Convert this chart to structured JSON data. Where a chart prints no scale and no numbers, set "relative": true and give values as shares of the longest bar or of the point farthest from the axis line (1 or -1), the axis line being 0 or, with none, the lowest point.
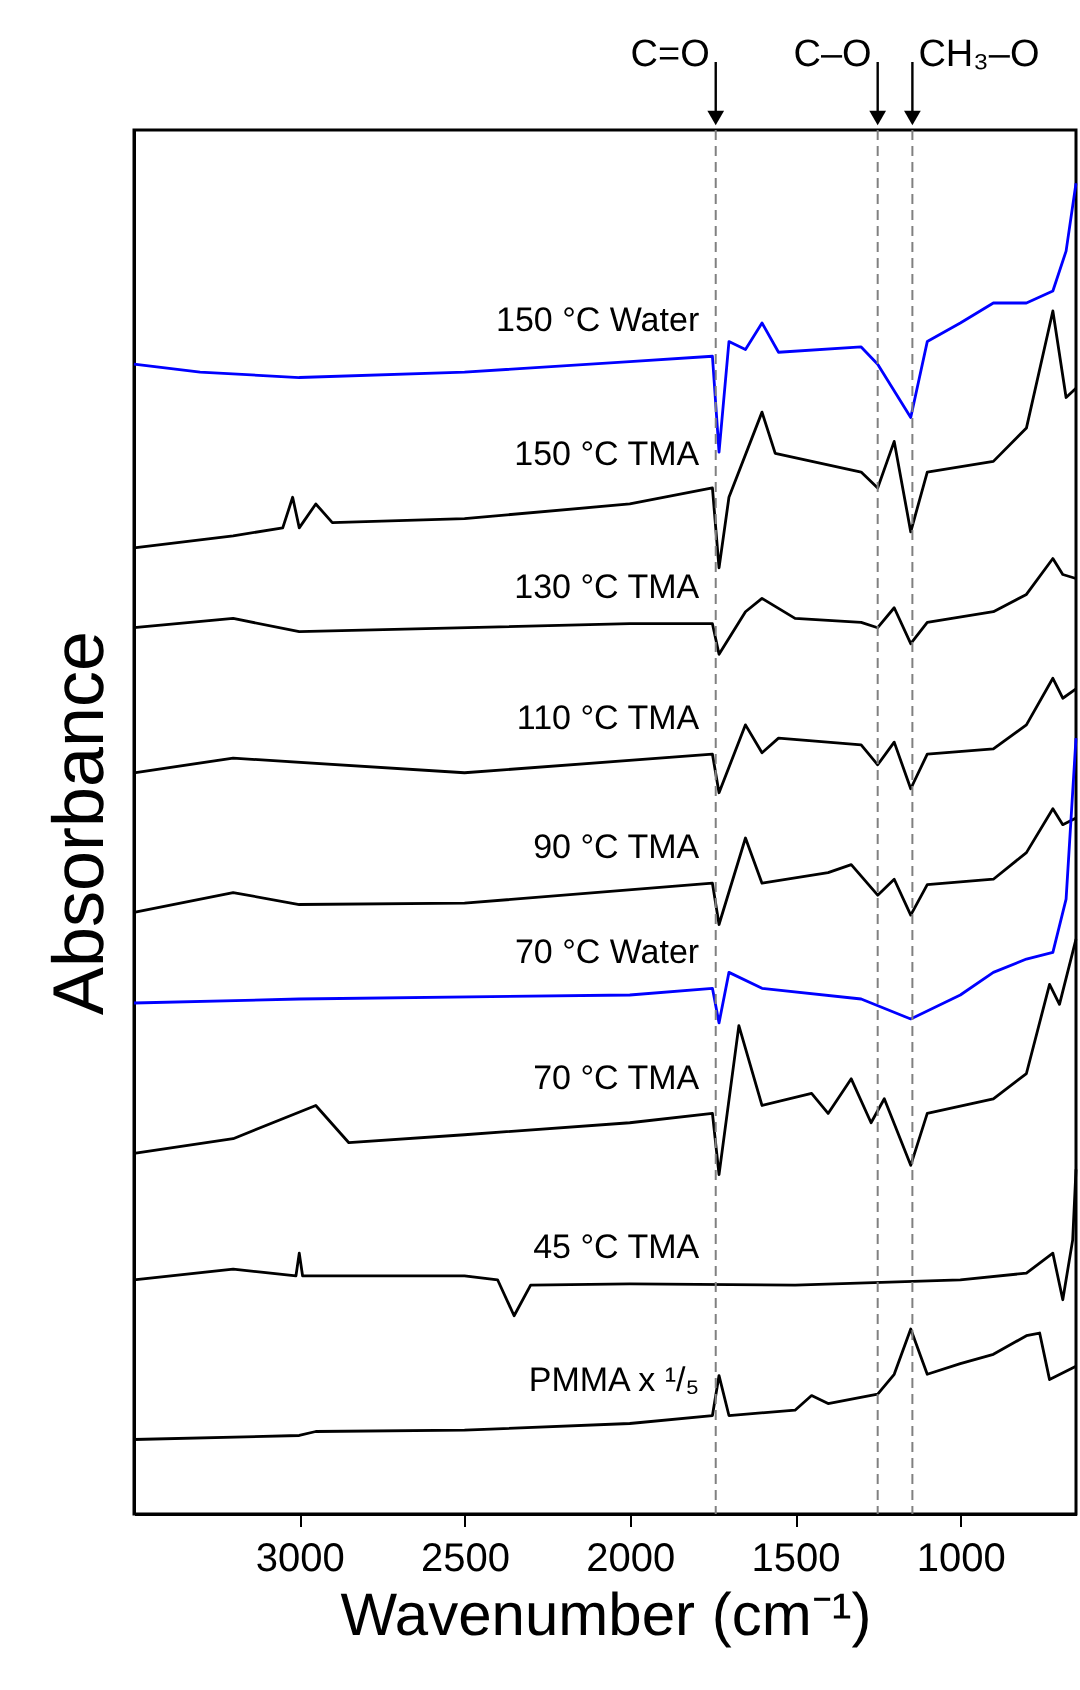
{
  "chart_data": {
    "type": "line",
    "relative": true,
    "xlabel": "Wavenumber (cm⁻¹)",
    "ylabel": "Absorbance",
    "xlim": [
      3500,
      650
    ],
    "xticks": [
      3000,
      2500,
      2000,
      1500,
      1000
    ],
    "tick_labels": "x",
    "grid": false,
    "legend": false,
    "marker": "none",
    "line_style": "solid",
    "series": [
      {
        "name": "150 °C Water",
        "color": "#0000ff",
        "x": [
          3500,
          3300,
          3000,
          2500,
          2000,
          1750,
          1730,
          1700,
          1650,
          1600,
          1550,
          1300,
          1250,
          1150,
          1100,
          1000,
          900,
          800,
          720,
          680,
          650
        ],
        "values": [
          0.864,
          0.858,
          0.854,
          0.858,
          0.866,
          0.87,
          0.798,
          0.881,
          0.875,
          0.895,
          0.873,
          0.877,
          0.864,
          0.824,
          0.881,
          0.895,
          0.91,
          0.91,
          0.919,
          0.949,
          1.0
        ]
      },
      {
        "name": "150 °C TMA",
        "color": "#000000",
        "x": [
          3500,
          3200,
          3050,
          3020,
          3000,
          2950,
          2900,
          2500,
          2000,
          1750,
          1730,
          1700,
          1600,
          1560,
          1300,
          1250,
          1200,
          1150,
          1100,
          900,
          800,
          720,
          680,
          650
        ],
        "values": [
          0.726,
          0.735,
          0.741,
          0.764,
          0.741,
          0.759,
          0.745,
          0.748,
          0.759,
          0.771,
          0.711,
          0.764,
          0.828,
          0.797,
          0.783,
          0.771,
          0.806,
          0.738,
          0.783,
          0.791,
          0.816,
          0.904,
          0.839,
          0.846
        ]
      },
      {
        "name": "130 °C TMA",
        "color": "#000000",
        "x": [
          3500,
          3200,
          3000,
          2000,
          1750,
          1730,
          1650,
          1600,
          1500,
          1300,
          1250,
          1200,
          1150,
          1100,
          900,
          800,
          720,
          690,
          650
        ],
        "values": [
          0.666,
          0.673,
          0.663,
          0.669,
          0.669,
          0.646,
          0.678,
          0.688,
          0.673,
          0.67,
          0.666,
          0.681,
          0.654,
          0.67,
          0.678,
          0.691,
          0.718,
          0.706,
          0.703
        ]
      },
      {
        "name": "110 °C TMA",
        "color": "#000000",
        "x": [
          3500,
          3200,
          2500,
          1750,
          1730,
          1650,
          1600,
          1550,
          1300,
          1250,
          1200,
          1150,
          1100,
          900,
          800,
          720,
          690,
          650
        ],
        "values": [
          0.557,
          0.568,
          0.557,
          0.571,
          0.542,
          0.593,
          0.572,
          0.583,
          0.578,
          0.563,
          0.58,
          0.545,
          0.571,
          0.575,
          0.593,
          0.628,
          0.613,
          0.62
        ]
      },
      {
        "name": "90 °C TMA",
        "color": "#000000",
        "x": [
          3500,
          3200,
          3000,
          2500,
          1750,
          1730,
          1650,
          1600,
          1400,
          1330,
          1250,
          1200,
          1150,
          1100,
          900,
          800,
          720,
          690,
          650
        ],
        "values": [
          0.452,
          0.467,
          0.458,
          0.459,
          0.474,
          0.443,
          0.508,
          0.474,
          0.482,
          0.488,
          0.465,
          0.477,
          0.45,
          0.473,
          0.477,
          0.497,
          0.53,
          0.518,
          0.523
        ]
      },
      {
        "name": "70 °C Water",
        "color": "#0000ff",
        "x": [
          3500,
          3000,
          2000,
          1750,
          1730,
          1700,
          1600,
          1300,
          1150,
          1000,
          900,
          800,
          720,
          680,
          650
        ],
        "values": [
          0.384,
          0.387,
          0.39,
          0.395,
          0.369,
          0.407,
          0.395,
          0.387,
          0.372,
          0.39,
          0.407,
          0.417,
          0.422,
          0.462,
          0.583
        ]
      },
      {
        "name": "70 °C TMA",
        "color": "#000000",
        "x": [
          3500,
          3200,
          2950,
          2850,
          2500,
          2000,
          1750,
          1730,
          1670,
          1600,
          1450,
          1400,
          1330,
          1270,
          1230,
          1150,
          1100,
          900,
          800,
          730,
          700,
          650
        ],
        "values": [
          0.271,
          0.282,
          0.307,
          0.279,
          0.285,
          0.294,
          0.301,
          0.255,
          0.367,
          0.307,
          0.316,
          0.301,
          0.327,
          0.294,
          0.312,
          0.262,
          0.301,
          0.312,
          0.331,
          0.398,
          0.383,
          0.432
        ]
      },
      {
        "name": "45 °C TMA",
        "color": "#000000",
        "x": [
          3500,
          3200,
          3010,
          3000,
          2990,
          2500,
          2400,
          2350,
          2300,
          2000,
          1500,
          1000,
          800,
          720,
          690,
          660,
          650
        ],
        "values": [
          0.176,
          0.184,
          0.179,
          0.196,
          0.179,
          0.179,
          0.176,
          0.149,
          0.172,
          0.173,
          0.172,
          0.176,
          0.181,
          0.196,
          0.161,
          0.206,
          0.259
        ]
      },
      {
        "name": "PMMA x ¹/₅",
        "color": "#000000",
        "x": [
          3500,
          3000,
          2950,
          2500,
          2000,
          1750,
          1730,
          1700,
          1500,
          1450,
          1400,
          1250,
          1200,
          1150,
          1100,
          1000,
          900,
          800,
          760,
          730,
          650
        ],
        "values": [
          0.056,
          0.059,
          0.062,
          0.063,
          0.068,
          0.074,
          0.104,
          0.074,
          0.078,
          0.089,
          0.083,
          0.09,
          0.105,
          0.139,
          0.105,
          0.113,
          0.12,
          0.134,
          0.136,
          0.101,
          0.111
        ]
      }
    ],
    "ref_lines": [
      {
        "axis": "x",
        "value": 1740,
        "label": "C=O",
        "color": "#808080",
        "line_style": "dashed"
      },
      {
        "axis": "x",
        "value": 1250,
        "label": "C–O",
        "color": "#808080",
        "line_style": "dashed"
      },
      {
        "axis": "x",
        "value": 1145,
        "label": "CH₃–O",
        "color": "#808080",
        "line_style": "dashed"
      }
    ]
  }
}
